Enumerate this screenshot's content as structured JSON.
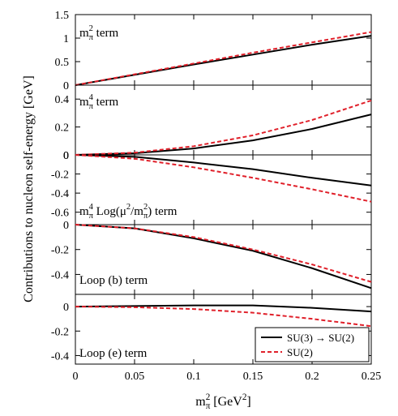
{
  "x_axis": {
    "label": [
      {
        "text": "m",
        "sub": "π",
        "sup": "2"
      },
      {
        "text": "  [GeV",
        "sup": "2"
      },
      {
        "text": "]"
      }
    ],
    "xlim": [
      0,
      0.25
    ],
    "xticks": [
      0,
      0.05,
      0.1,
      0.15,
      0.2,
      0.25
    ]
  },
  "ylabel": "Contributions to nucleon self-energy  [GeV]",
  "chart_data": [
    {
      "type": "line",
      "annotation": [
        {
          "text": "m",
          "sub": "π",
          "sup": "2"
        },
        {
          "text": " term"
        }
      ],
      "x": [
        0,
        0.05,
        0.1,
        0.15,
        0.2,
        0.25
      ],
      "ylim": [
        0,
        1.5
      ],
      "yticks": [
        0,
        0.5,
        1,
        1.5
      ],
      "series": [
        {
          "color": "#000000",
          "dash": false,
          "values": [
            0,
            0.22,
            0.44,
            0.65,
            0.86,
            1.05
          ]
        },
        {
          "color": "#e0202a",
          "dash": true,
          "values": [
            0,
            0.23,
            0.46,
            0.69,
            0.91,
            1.13
          ]
        }
      ]
    },
    {
      "type": "line",
      "annotation": [
        {
          "text": "m",
          "sub": "π",
          "sup": "4"
        },
        {
          "text": " term"
        }
      ],
      "x": [
        0,
        0.05,
        0.1,
        0.15,
        0.2,
        0.25
      ],
      "ylim": [
        0,
        0.5
      ],
      "yticks": [
        0,
        0.2,
        0.4
      ],
      "series": [
        {
          "color": "#000000",
          "dash": false,
          "values": [
            0,
            0.012,
            0.046,
            0.104,
            0.186,
            0.29
          ]
        },
        {
          "color": "#e0202a",
          "dash": true,
          "values": [
            0,
            0.016,
            0.062,
            0.14,
            0.25,
            0.39
          ]
        }
      ]
    },
    {
      "type": "line",
      "annotation": [
        {
          "text": "m",
          "sub": "π",
          "sup": "4"
        },
        {
          "text": " Log(μ",
          "sup": "2"
        },
        {
          "text": "/m",
          "sub": "π",
          "sup": "2"
        },
        {
          "text": ") term"
        }
      ],
      "x": [
        0,
        0.05,
        0.1,
        0.15,
        0.2,
        0.25
      ],
      "ylim": [
        -0.73,
        0
      ],
      "yticks": [
        0,
        -0.2,
        -0.4,
        -0.6
      ],
      "series": [
        {
          "color": "#000000",
          "dash": false,
          "values": [
            0,
            -0.02,
            -0.08,
            -0.15,
            -0.24,
            -0.32
          ]
        },
        {
          "color": "#e0202a",
          "dash": true,
          "values": [
            0,
            -0.04,
            -0.13,
            -0.24,
            -0.36,
            -0.49
          ]
        }
      ]
    },
    {
      "type": "line",
      "annotation": [
        {
          "text": "Loop (b) term"
        }
      ],
      "x": [
        0,
        0.05,
        0.1,
        0.15,
        0.2,
        0.25
      ],
      "ylim": [
        -0.56,
        0
      ],
      "yticks": [
        0,
        -0.2,
        -0.4
      ],
      "series": [
        {
          "color": "#000000",
          "dash": false,
          "values": [
            0,
            -0.03,
            -0.11,
            -0.21,
            -0.35,
            -0.51
          ]
        },
        {
          "color": "#e0202a",
          "dash": true,
          "values": [
            0,
            -0.03,
            -0.1,
            -0.2,
            -0.32,
            -0.46
          ]
        }
      ]
    },
    {
      "type": "line",
      "annotation": [
        {
          "text": "Loop (e) term"
        }
      ],
      "legend": "lower right",
      "x": [
        0,
        0.05,
        0.1,
        0.15,
        0.2,
        0.25
      ],
      "ylim": [
        -0.47,
        0.1
      ],
      "yticks": [
        0,
        -0.2,
        -0.4
      ],
      "series": [
        {
          "name": "SU(3) → SU(2)",
          "color": "#000000",
          "dash": false,
          "values": [
            0,
            0.005,
            0.01,
            0.01,
            -0.01,
            -0.04
          ]
        },
        {
          "name": "SU(2)",
          "color": "#e0202a",
          "dash": true,
          "values": [
            0,
            -0.005,
            -0.02,
            -0.05,
            -0.1,
            -0.16
          ]
        }
      ]
    }
  ]
}
